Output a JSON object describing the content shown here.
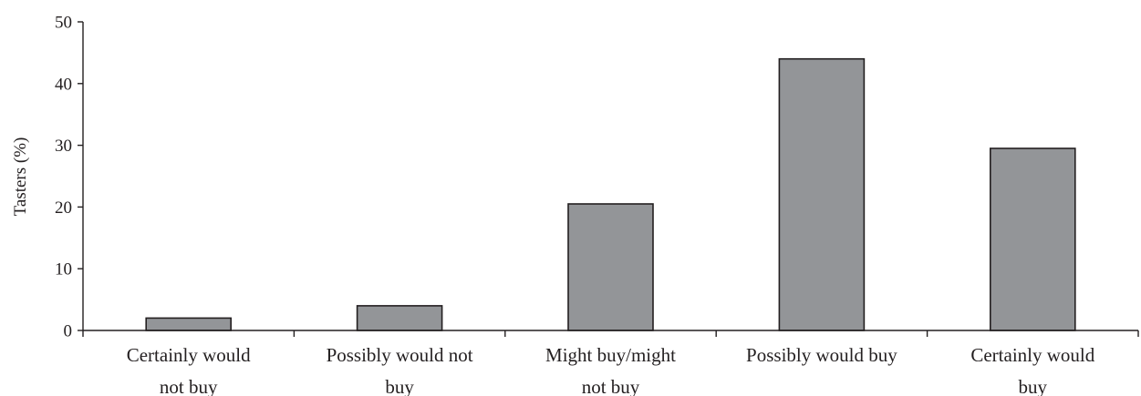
{
  "chart_data": {
    "type": "bar",
    "title": "",
    "xlabel": "",
    "ylabel": "Tasters (%)",
    "ylim": [
      0,
      50
    ],
    "yticks": [
      0,
      10,
      20,
      30,
      40,
      50
    ],
    "grid": false,
    "legend": "none",
    "categories": [
      [
        "Certainly would",
        "not buy"
      ],
      [
        "Possibly would not",
        "buy"
      ],
      [
        "Might buy/might",
        "not buy"
      ],
      [
        "Possibly would buy"
      ],
      [
        "Certainly would",
        "buy"
      ]
    ],
    "values": [
      2,
      4,
      20.5,
      44,
      29.5
    ],
    "colors": {
      "bar_fill": "#939598",
      "bar_stroke": "#231f20",
      "axis": "#231f20",
      "text": "#231f20"
    }
  }
}
